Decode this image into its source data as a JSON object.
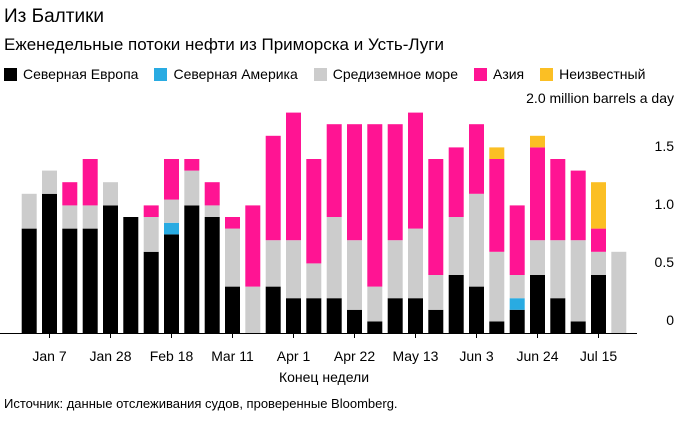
{
  "chart_data": {
    "type": "bar",
    "stacked": true,
    "title": "Из Балтики",
    "subtitle": "Еженедельные потоки нефти из Приморска и Усть-Луги",
    "xlabel": "Конец недели",
    "ylabel": "million barrels a day",
    "y_unit_label": "2.0 million barrels a day",
    "ylim": [
      0,
      2.0
    ],
    "y_ticks": [
      "0",
      "0.5",
      "1.0",
      "1.5"
    ],
    "y_tick_values": [
      0,
      0.5,
      1.0,
      1.5
    ],
    "x_tick_labels": [
      "Jan 7",
      "Jan 28",
      "Feb 18",
      "Mar 11",
      "Apr 1",
      "Apr 22",
      "May 13",
      "Jun 3",
      "Jun 24",
      "Jul 15"
    ],
    "x_tick_indices": [
      1,
      4,
      7,
      10,
      13,
      16,
      19,
      22,
      25,
      28
    ],
    "weeks": 30,
    "series": [
      {
        "name": "Северная Европа",
        "color": "#000000",
        "values": [
          0.9,
          1.2,
          0.9,
          0.9,
          1.1,
          1.0,
          0.7,
          0.85,
          1.1,
          1.0,
          0.4,
          0.0,
          0.4,
          0.3,
          0.3,
          0.3,
          0.2,
          0.1,
          0.3,
          0.3,
          0.2,
          0.5,
          0.4,
          0.1,
          0.2,
          0.5,
          0.3,
          0.1,
          0.5,
          0.0
        ]
      },
      {
        "name": "Северная Америка",
        "color": "#29abe2",
        "values": [
          0.0,
          0.0,
          0.0,
          0.0,
          0.0,
          0.0,
          0.0,
          0.1,
          0.0,
          0.0,
          0.0,
          0.0,
          0.0,
          0.0,
          0.0,
          0.0,
          0.0,
          0.0,
          0.0,
          0.0,
          0.0,
          0.0,
          0.0,
          0.0,
          0.1,
          0.0,
          0.0,
          0.0,
          0.0,
          0.0
        ]
      },
      {
        "name": "Средиземное море",
        "color": "#cccccc",
        "values": [
          0.3,
          0.2,
          0.2,
          0.2,
          0.2,
          0.0,
          0.3,
          0.2,
          0.3,
          0.1,
          0.5,
          0.4,
          0.4,
          0.5,
          0.3,
          0.7,
          0.6,
          0.3,
          0.5,
          0.6,
          0.3,
          0.5,
          0.8,
          0.6,
          0.2,
          0.3,
          0.5,
          0.7,
          0.2,
          0.7
        ]
      },
      {
        "name": "Азия",
        "color": "#ff1493",
        "values": [
          0.0,
          0.0,
          0.2,
          0.4,
          0.0,
          0.0,
          0.1,
          0.35,
          0.1,
          0.2,
          0.1,
          0.7,
          0.9,
          1.1,
          0.9,
          0.8,
          1.0,
          1.4,
          1.0,
          1.0,
          1.0,
          0.6,
          0.6,
          0.8,
          0.6,
          0.8,
          0.7,
          0.6,
          0.2,
          0.0
        ]
      },
      {
        "name": "Неизвестный",
        "color": "#fbbf24",
        "values": [
          0.0,
          0.0,
          0.0,
          0.0,
          0.0,
          0.0,
          0.0,
          0.0,
          0.0,
          0.0,
          0.0,
          0.0,
          0.0,
          0.0,
          0.0,
          0.0,
          0.0,
          0.0,
          0.0,
          0.0,
          0.0,
          0.0,
          0.0,
          0.1,
          0.0,
          0.1,
          0.0,
          0.0,
          0.4,
          0.0
        ]
      }
    ],
    "source": "Источник: данные отслеживания судов, проверенные Bloomberg."
  }
}
